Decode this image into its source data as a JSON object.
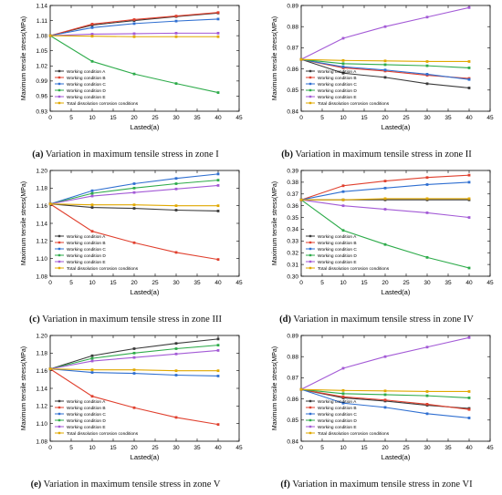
{
  "colors": {
    "A": "#3a3a3a",
    "B": "#e0402e",
    "C": "#2f6fd1",
    "D": "#2dab4a",
    "E": "#a35ad6",
    "T": "#e0a800"
  },
  "legend_labels": {
    "A": "Working condition A",
    "B": "Working condition B",
    "C": "Working condition C",
    "D": "Working condition D",
    "E": "Working condition E",
    "T": "Total dissolution corrosion conditions"
  },
  "chart_data": [
    {
      "type": "line",
      "caption_letter": "(a)",
      "caption_text": " Variation in maximum tensile stress in zone I",
      "xlabel": "Lasted(a)",
      "ylabel": "Maximum tensile stress(MPa)",
      "x": [
        0,
        10,
        20,
        30,
        40
      ],
      "xlim": [
        0,
        45
      ],
      "xticks": [
        0,
        5,
        10,
        15,
        20,
        25,
        30,
        35,
        40,
        45
      ],
      "ylim": [
        0.93,
        1.14
      ],
      "yticks": [
        0.93,
        0.96,
        0.99,
        1.02,
        1.05,
        1.08,
        1.11,
        1.14
      ],
      "ytick_labels": [
        "0.93",
        "0.96",
        "0.99",
        "1.02",
        "1.05",
        "1.08",
        "1.11",
        "1.14"
      ],
      "legend": "lower-left",
      "series": [
        {
          "key": "A",
          "name": "Working condition A",
          "values": [
            1.08,
            1.101,
            1.11,
            1.118,
            1.125
          ]
        },
        {
          "key": "B",
          "name": "Working condition B",
          "values": [
            1.08,
            1.103,
            1.112,
            1.119,
            1.126
          ]
        },
        {
          "key": "C",
          "name": "Working condition C",
          "values": [
            1.08,
            1.096,
            1.104,
            1.109,
            1.113
          ]
        },
        {
          "key": "D",
          "name": "Working condition D",
          "values": [
            1.08,
            1.029,
            1.004,
            0.985,
            0.967
          ]
        },
        {
          "key": "E",
          "name": "Working condition E",
          "values": [
            1.08,
            1.083,
            1.084,
            1.085,
            1.085
          ]
        },
        {
          "key": "T",
          "name": "Total dissolution corrosion conditions",
          "values": [
            1.08,
            1.079,
            1.078,
            1.078,
            1.078
          ]
        }
      ]
    },
    {
      "type": "line",
      "caption_letter": "(b)",
      "caption_text": " Variation in maximum tensile stress in zone II",
      "xlabel": "Lasted(a)",
      "ylabel": "Maximum tensile stress(MPa)",
      "x": [
        0,
        10,
        20,
        30,
        40
      ],
      "xlim": [
        0,
        45
      ],
      "xticks": [
        0,
        5,
        10,
        15,
        20,
        25,
        30,
        35,
        40,
        45
      ],
      "ylim": [
        0.84,
        0.89
      ],
      "yticks": [
        0.84,
        0.85,
        0.86,
        0.87,
        0.88,
        0.89
      ],
      "ytick_labels": [
        "0.84",
        "0.85",
        "0.86",
        "0.87",
        "0.88",
        "0.89"
      ],
      "legend": "lower-left",
      "series": [
        {
          "key": "A",
          "name": "Working condition A",
          "values": [
            0.8645,
            0.858,
            0.856,
            0.853,
            0.851
          ]
        },
        {
          "key": "B",
          "name": "Working condition B",
          "values": [
            0.8645,
            0.8605,
            0.859,
            0.857,
            0.8555
          ]
        },
        {
          "key": "C",
          "name": "Working condition C",
          "values": [
            0.8645,
            0.861,
            0.8595,
            0.8575,
            0.855
          ]
        },
        {
          "key": "D",
          "name": "Working condition D",
          "values": [
            0.8645,
            0.8625,
            0.862,
            0.8615,
            0.8605
          ]
        },
        {
          "key": "E",
          "name": "Working condition E",
          "values": [
            0.8645,
            0.8745,
            0.88,
            0.8845,
            0.889
          ]
        },
        {
          "key": "T",
          "name": "Total dissolution corrosion conditions",
          "values": [
            0.8645,
            0.864,
            0.8638,
            0.8635,
            0.8635
          ]
        }
      ]
    },
    {
      "type": "line",
      "caption_letter": "(c)",
      "caption_text": " Variation in maximum tensile stress in zone III",
      "xlabel": "Lasted(a)",
      "ylabel": "Maximum tensile stress(MPa)",
      "x": [
        0,
        10,
        20,
        30,
        40
      ],
      "xlim": [
        0,
        45
      ],
      "xticks": [
        0,
        5,
        10,
        15,
        20,
        25,
        30,
        35,
        40,
        45
      ],
      "ylim": [
        1.08,
        1.2
      ],
      "yticks": [
        1.08,
        1.1,
        1.12,
        1.14,
        1.16,
        1.18,
        1.2
      ],
      "ytick_labels": [
        "1.08",
        "1.10",
        "1.12",
        "1.14",
        "1.16",
        "1.18",
        "1.20"
      ],
      "legend": "lower-left",
      "series": [
        {
          "key": "A",
          "name": "Working condition A",
          "values": [
            1.162,
            1.158,
            1.157,
            1.155,
            1.154
          ]
        },
        {
          "key": "B",
          "name": "Working condition B",
          "values": [
            1.162,
            1.131,
            1.118,
            1.107,
            1.099
          ]
        },
        {
          "key": "C",
          "name": "Working condition C",
          "values": [
            1.162,
            1.177,
            1.185,
            1.191,
            1.196
          ]
        },
        {
          "key": "D",
          "name": "Working condition D",
          "values": [
            1.162,
            1.174,
            1.18,
            1.185,
            1.189
          ]
        },
        {
          "key": "E",
          "name": "Working condition E",
          "values": [
            1.162,
            1.171,
            1.175,
            1.179,
            1.183
          ]
        },
        {
          "key": "T",
          "name": "Total dissolution corrosion conditions",
          "values": [
            1.162,
            1.161,
            1.161,
            1.16,
            1.16
          ]
        }
      ]
    },
    {
      "type": "line",
      "caption_letter": "(d)",
      "caption_text": " Variation in maximum tensile stress in zone IV",
      "xlabel": "Lasted(a)",
      "ylabel": "Maximum tensile stress(MPa)",
      "x": [
        0,
        10,
        20,
        30,
        40
      ],
      "xlim": [
        0,
        45
      ],
      "xticks": [
        0,
        5,
        10,
        15,
        20,
        25,
        30,
        35,
        40,
        45
      ],
      "ylim": [
        0.3,
        0.39
      ],
      "yticks": [
        0.3,
        0.31,
        0.32,
        0.33,
        0.34,
        0.35,
        0.36,
        0.37,
        0.38,
        0.39
      ],
      "ytick_labels": [
        "0.30",
        "0.31",
        "0.32",
        "0.33",
        "0.34",
        "0.35",
        "0.36",
        "0.37",
        "0.38",
        "0.39"
      ],
      "legend": "lower-left",
      "series": [
        {
          "key": "A",
          "name": "Working condition A",
          "values": [
            0.365,
            0.365,
            0.365,
            0.365,
            0.365
          ]
        },
        {
          "key": "B",
          "name": "Working condition B",
          "values": [
            0.365,
            0.377,
            0.381,
            0.384,
            0.386
          ]
        },
        {
          "key": "C",
          "name": "Working condition C",
          "values": [
            0.365,
            0.372,
            0.375,
            0.378,
            0.38
          ]
        },
        {
          "key": "D",
          "name": "Working condition D",
          "values": [
            0.365,
            0.339,
            0.327,
            0.316,
            0.307
          ]
        },
        {
          "key": "E",
          "name": "Working condition E",
          "values": [
            0.365,
            0.36,
            0.357,
            0.354,
            0.35
          ]
        },
        {
          "key": "T",
          "name": "Total dissolution corrosion conditions",
          "values": [
            0.365,
            0.365,
            0.366,
            0.366,
            0.366
          ]
        }
      ]
    },
    {
      "type": "line",
      "caption_letter": "(e)",
      "caption_text": " Variation in maximum tensile stress in zone V",
      "xlabel": "Lasted(a)",
      "ylabel": "Maximum tensile stress(MPa)",
      "x": [
        0,
        10,
        20,
        30,
        40
      ],
      "xlim": [
        0,
        45
      ],
      "xticks": [
        0,
        5,
        10,
        15,
        20,
        25,
        30,
        35,
        40,
        45
      ],
      "ylim": [
        1.08,
        1.2
      ],
      "yticks": [
        1.08,
        1.1,
        1.12,
        1.14,
        1.16,
        1.18,
        1.2
      ],
      "ytick_labels": [
        "1.08",
        "1.10",
        "1.12",
        "1.14",
        "1.16",
        "1.18",
        "1.20"
      ],
      "legend": "lower-left",
      "series": [
        {
          "key": "A",
          "name": "Working condition A",
          "values": [
            1.162,
            1.177,
            1.185,
            1.191,
            1.196
          ]
        },
        {
          "key": "B",
          "name": "Working condition B",
          "values": [
            1.162,
            1.131,
            1.118,
            1.107,
            1.099
          ]
        },
        {
          "key": "C",
          "name": "Working condition C",
          "values": [
            1.162,
            1.158,
            1.157,
            1.155,
            1.154
          ]
        },
        {
          "key": "D",
          "name": "Working condition D",
          "values": [
            1.162,
            1.174,
            1.18,
            1.185,
            1.189
          ]
        },
        {
          "key": "E",
          "name": "Working condition E",
          "values": [
            1.162,
            1.171,
            1.175,
            1.179,
            1.183
          ]
        },
        {
          "key": "T",
          "name": "Total dissolution corrosion conditions",
          "values": [
            1.162,
            1.161,
            1.161,
            1.16,
            1.16
          ]
        }
      ]
    },
    {
      "type": "line",
      "caption_letter": "(f)",
      "caption_text": " Variation in maximum tensile stress in zone VI",
      "xlabel": "Lasted(a)",
      "ylabel": "Maximum tensile stress(MPa)",
      "x": [
        0,
        10,
        20,
        30,
        40
      ],
      "xlim": [
        0,
        45
      ],
      "xticks": [
        0,
        5,
        10,
        15,
        20,
        25,
        30,
        35,
        40,
        45
      ],
      "ylim": [
        0.84,
        0.89
      ],
      "yticks": [
        0.84,
        0.85,
        0.86,
        0.87,
        0.88,
        0.89
      ],
      "ytick_labels": [
        "0.84",
        "0.85",
        "0.86",
        "0.87",
        "0.88",
        "0.89"
      ],
      "legend": "lower-left",
      "series": [
        {
          "key": "A",
          "name": "Working condition A",
          "values": [
            0.8645,
            0.8605,
            0.859,
            0.857,
            0.8555
          ]
        },
        {
          "key": "B",
          "name": "Working condition B",
          "values": [
            0.8645,
            0.861,
            0.8595,
            0.8575,
            0.855
          ]
        },
        {
          "key": "C",
          "name": "Working condition C",
          "values": [
            0.8645,
            0.858,
            0.856,
            0.853,
            0.851
          ]
        },
        {
          "key": "D",
          "name": "Working condition D",
          "values": [
            0.8645,
            0.8625,
            0.862,
            0.8615,
            0.8605
          ]
        },
        {
          "key": "E",
          "name": "Working condition E",
          "values": [
            0.8645,
            0.8745,
            0.88,
            0.8845,
            0.889
          ]
        },
        {
          "key": "T",
          "name": "Total dissolution corrosion conditions",
          "values": [
            0.8645,
            0.864,
            0.8638,
            0.8635,
            0.8635
          ]
        }
      ]
    }
  ]
}
